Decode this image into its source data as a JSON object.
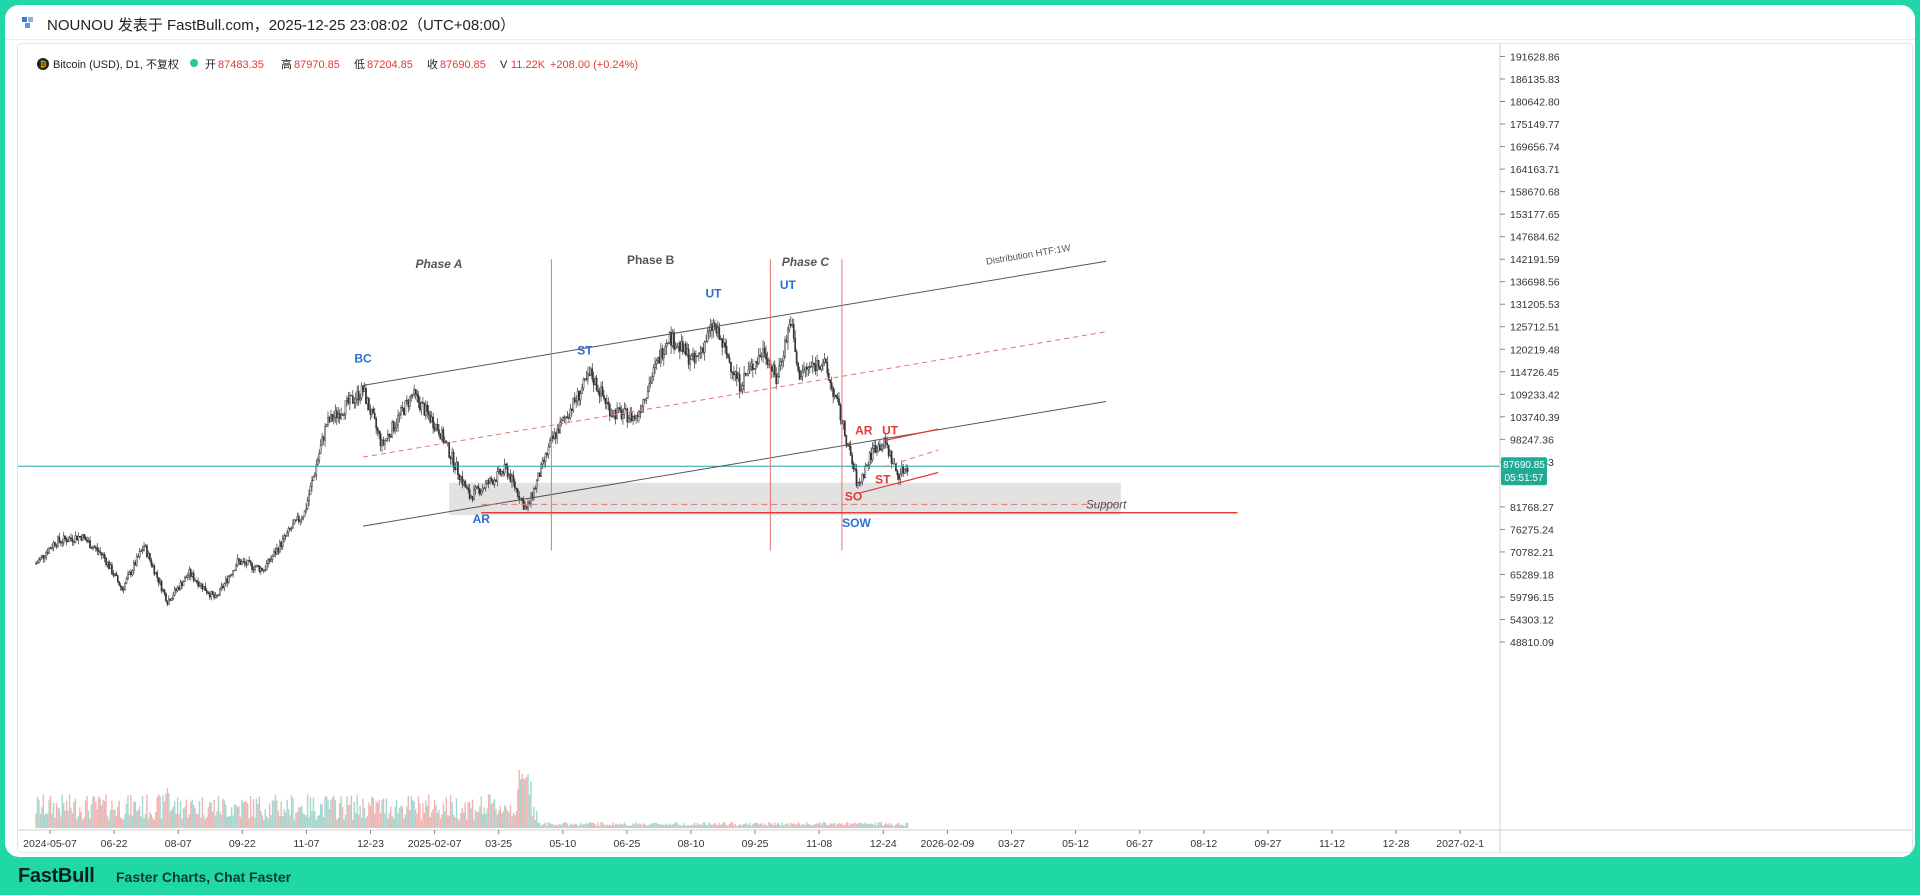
{
  "header": {
    "author_line": "NOUNOU 发表于 FastBull.com，2025-12-25 23:08:02（UTC+08:00）"
  },
  "symbol": {
    "name": "Bitcoin (USD), D1, 不复权",
    "o_label": "开",
    "o_value": "87483.35",
    "h_label": "高",
    "h_value": "87970.85",
    "l_label": "低",
    "l_value": "87204.85",
    "c_label": "收",
    "c_value": "87690.85",
    "v_label": "V",
    "v_value": "11.22K",
    "change": "+208.00 (+0.24%)"
  },
  "price_tag": {
    "price": "87690.85",
    "countdown": "05:51:57"
  },
  "footer": {
    "logo": "FastBull",
    "tagline": "Faster Charts, Chat Faster"
  },
  "colors": {
    "up": "#26a69a",
    "down": "#ef5350",
    "candle": "#333333",
    "blue_label": "#2b6fd6",
    "red_label": "#e53935",
    "price_line": "#26a69a"
  },
  "chart_data": {
    "type": "candlestick",
    "y_ticks": [
      "191628.86",
      "186135.83",
      "180642.80",
      "175149.77",
      "169656.74",
      "164163.71",
      "158670.68",
      "153177.65",
      "147684.62",
      "142191.59",
      "136698.56",
      "131205.53",
      "125712.51",
      "120219.48",
      "114726.45",
      "109233.42",
      "103740.39",
      "98247.36",
      "92754.33",
      "81768.27",
      "76275.24",
      "70782.21",
      "65289.18",
      "59796.15",
      "54303.12",
      "48810.09"
    ],
    "x_ticks": [
      "2024-05-07",
      "06-22",
      "08-07",
      "09-22",
      "11-07",
      "12-23",
      "2025-02-07",
      "03-25",
      "05-10",
      "06-25",
      "08-10",
      "09-25",
      "11-08",
      "12-24",
      "2026-02-09",
      "03-27",
      "05-12",
      "06-27",
      "08-12",
      "09-27",
      "11-12",
      "12-28",
      "2027-02-1"
    ],
    "x_range": [
      "2024-05-07",
      "2027-02-01"
    ],
    "price_path": [
      [
        "2024-05-07",
        63000
      ],
      [
        "2024-05-20",
        68500
      ],
      [
        "2024-06-07",
        70000
      ],
      [
        "2024-06-22",
        65000
      ],
      [
        "2024-07-05",
        56500
      ],
      [
        "2024-07-20",
        67500
      ],
      [
        "2024-08-05",
        53500
      ],
      [
        "2024-08-20",
        60500
      ],
      [
        "2024-09-07",
        54000
      ],
      [
        "2024-09-22",
        63500
      ],
      [
        "2024-10-10",
        61500
      ],
      [
        "2024-10-29",
        72000
      ],
      [
        "2024-11-07",
        76000
      ],
      [
        "2024-11-22",
        98500
      ],
      [
        "2024-12-17",
        107000
      ],
      [
        "2024-12-30",
        93000
      ],
      [
        "2025-01-20",
        106000
      ],
      [
        "2025-02-07",
        97000
      ],
      [
        "2025-02-28",
        80000
      ],
      [
        "2025-03-15",
        84000
      ],
      [
        "2025-03-25",
        87000
      ],
      [
        "2025-04-08",
        76500
      ],
      [
        "2025-04-25",
        94000
      ],
      [
        "2025-05-10",
        103500
      ],
      [
        "2025-05-22",
        111000
      ],
      [
        "2025-06-05",
        101500
      ],
      [
        "2025-06-22",
        100000
      ],
      [
        "2025-07-14",
        121000
      ],
      [
        "2025-08-01",
        114000
      ],
      [
        "2025-08-14",
        123500
      ],
      [
        "2025-09-01",
        108500
      ],
      [
        "2025-09-18",
        117500
      ],
      [
        "2025-09-26",
        109500
      ],
      [
        "2025-10-06",
        125000
      ],
      [
        "2025-10-11",
        111000
      ],
      [
        "2025-10-28",
        114500
      ],
      [
        "2025-11-08",
        102000
      ],
      [
        "2025-11-21",
        82500
      ],
      [
        "2025-12-02",
        92500
      ],
      [
        "2025-12-10",
        93500
      ],
      [
        "2025-12-18",
        85500
      ],
      [
        "2025-12-25",
        87690
      ]
    ],
    "phases": [
      {
        "label": "Phase A",
        "date": "2025-02-07",
        "price": 138000
      },
      {
        "label": "Phase B",
        "date": "2025-07-02",
        "price": 139000
      },
      {
        "label": "Phase C",
        "date": "2025-10-16",
        "price": 138500
      }
    ],
    "events": [
      {
        "label": "BC",
        "date": "2024-12-17",
        "price": 114000,
        "color": "blue"
      },
      {
        "label": "AR",
        "date": "2025-03-08",
        "price": 73300,
        "color": "blue"
      },
      {
        "label": "ST",
        "date": "2025-05-18",
        "price": 116000,
        "color": "blue"
      },
      {
        "label": "UT",
        "date": "2025-08-14",
        "price": 130500,
        "color": "blue"
      },
      {
        "label": "UT",
        "date": "2025-10-04",
        "price": 132700,
        "color": "blue"
      },
      {
        "label": "SOW",
        "date": "2025-11-20",
        "price": 72300,
        "color": "blue"
      },
      {
        "label": "AR",
        "date": "2025-11-25",
        "price": 95800,
        "color": "red"
      },
      {
        "label": "UT",
        "date": "2025-12-13",
        "price": 95800,
        "color": "red"
      },
      {
        "label": "ST",
        "date": "2025-12-08",
        "price": 83300,
        "color": "red"
      },
      {
        "label": "SO",
        "date": "2025-11-18",
        "price": 79000,
        "color": "red"
      }
    ],
    "annotations": {
      "channel_label": "Distribution HTF:1W",
      "support_label": "Support"
    }
  }
}
